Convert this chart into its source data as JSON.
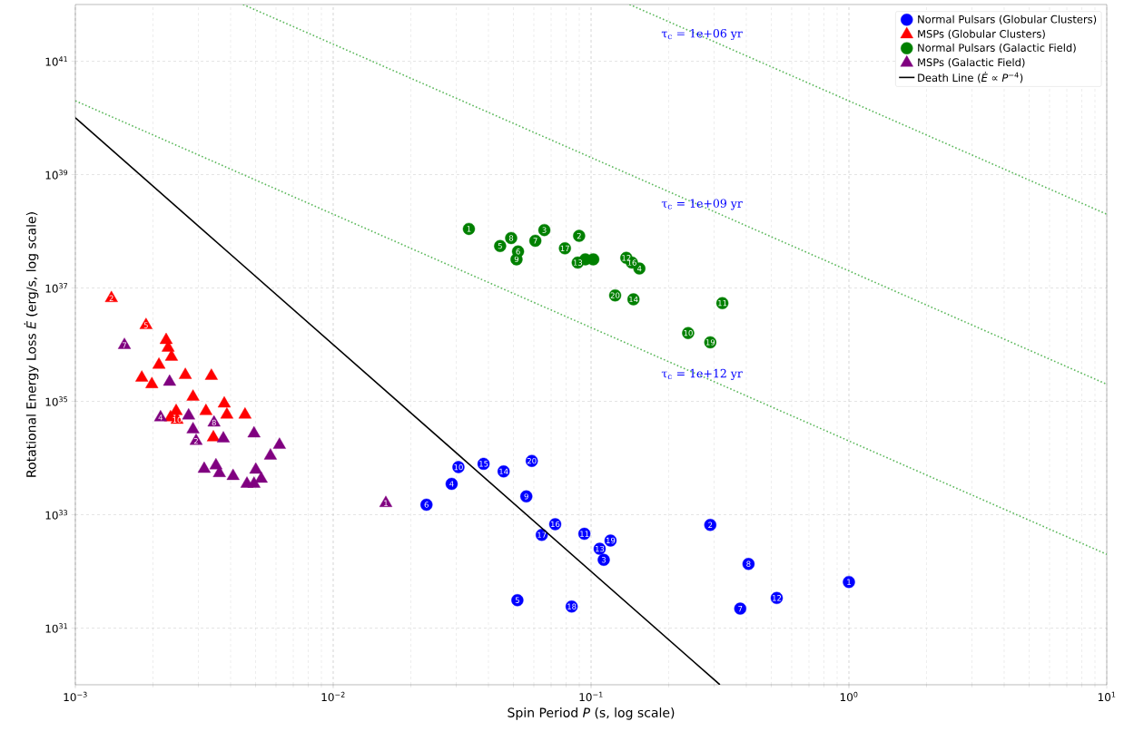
{
  "chart_data": {
    "type": "scatter",
    "xlabel": "Spin Period *P* (s, log scale)",
    "ylabel": "Rotational Energy Loss *Ė* (erg/s, log scale)",
    "log": "xy",
    "xlim": [
      0.001,
      10
    ],
    "ylim": [
      1e+30,
      1e+42
    ],
    "xticks": [
      {
        "value": 0.001,
        "label": "10$^{−3}$"
      },
      {
        "value": 0.01,
        "label": "10$^{−2}$"
      },
      {
        "value": 0.1,
        "label": "10$^{−1}$"
      },
      {
        "value": 1,
        "label": "10$^{0}$"
      },
      {
        "value": 10,
        "label": "10$^{1}$"
      }
    ],
    "yticks": [
      {
        "value": 1e+31,
        "label": "10$^{31}$"
      },
      {
        "value": 1e+33,
        "label": "10$^{33}$"
      },
      {
        "value": 1e+35,
        "label": "10$^{35}$"
      },
      {
        "value": 1e+37,
        "label": "10$^{37}$"
      },
      {
        "value": 1e+39,
        "label": "10$^{39}$"
      },
      {
        "value": 1e+41,
        "label": "10$^{41}$"
      }
    ],
    "grid": true,
    "legend": "top right",
    "annotations": [
      {
        "text": "1",
        "x": 1.0,
        "y": 6.5e+31
      },
      {
        "text": "2",
        "x": 0.29,
        "y": 6.6e+32
      },
      {
        "text": "3",
        "x": 0.112,
        "y": 1.6e+32
      },
      {
        "text": "4",
        "x": 0.0288,
        "y": 3.5e+33
      },
      {
        "text": "5",
        "x": 0.0518,
        "y": 3.1e+31
      },
      {
        "text": "6",
        "x": 0.023,
        "y": 1.5e+33
      },
      {
        "text": "7",
        "x": 0.379,
        "y": 2.2e+31
      },
      {
        "text": "8",
        "x": 0.408,
        "y": 1.35e+32
      },
      {
        "text": "9",
        "x": 0.0561,
        "y": 2.1e+33
      },
      {
        "text": "10",
        "x": 0.0306,
        "y": 6.9e+33
      },
      {
        "text": "11",
        "x": 0.0942,
        "y": 4.6e+32
      },
      {
        "text": "12",
        "x": 0.525,
        "y": 3.4e+31
      },
      {
        "text": "13",
        "x": 0.108,
        "y": 2.5e+32
      },
      {
        "text": "14",
        "x": 0.0458,
        "y": 5.8e+33
      },
      {
        "text": "15",
        "x": 0.0383,
        "y": 7.9e+33
      },
      {
        "text": "16",
        "x": 0.0726,
        "y": 6.8e+32
      },
      {
        "text": "17",
        "x": 0.0644,
        "y": 4.4e+32
      },
      {
        "text": "18",
        "x": 0.0841,
        "y": 2.4e+31
      },
      {
        "text": "19",
        "x": 0.119,
        "y": 3.5e+32
      },
      {
        "text": "20",
        "x": 0.0589,
        "y": 8.9e+33
      },
      {
        "text": "2",
        "x": 0.00138,
        "y": 6.6e+36
      },
      {
        "text": "5",
        "x": 0.00188,
        "y": 2.2e+36
      },
      {
        "text": "10",
        "x": 0.00248,
        "y": 4.7e+34
      },
      {
        "text": "1",
        "x": 0.0336,
        "y": 1.1e+38
      },
      {
        "text": "2",
        "x": 0.0899,
        "y": 8.3e+37
      },
      {
        "text": "3",
        "x": 0.0659,
        "y": 1.05e+38
      },
      {
        "text": "4",
        "x": 0.154,
        "y": 2.2e+37
      },
      {
        "text": "5",
        "x": 0.0444,
        "y": 5.5e+37
      },
      {
        "text": "6",
        "x": 0.0521,
        "y": 4.4e+37
      },
      {
        "text": "7",
        "x": 0.0608,
        "y": 6.8e+37
      },
      {
        "text": "8",
        "x": 0.049,
        "y": 7.6e+37
      },
      {
        "text": "9",
        "x": 0.0514,
        "y": 3.2e+37
      },
      {
        "text": "10",
        "x": 0.238,
        "y": 1.6e+36
      },
      {
        "text": "11",
        "x": 0.323,
        "y": 5.4e+36
      },
      {
        "text": "12",
        "x": 0.137,
        "y": 3.4e+37
      },
      {
        "text": "13",
        "x": 0.0888,
        "y": 2.8e+37
      },
      {
        "text": "14",
        "x": 0.146,
        "y": 6.3e+36
      },
      {
        "text": "16",
        "x": 0.144,
        "y": 2.8e+37
      },
      {
        "text": "17",
        "x": 0.0792,
        "y": 5e+37
      },
      {
        "text": "19",
        "x": 0.29,
        "y": 1.1e+36
      },
      {
        "text": "20",
        "x": 0.124,
        "y": 7.4e+36
      },
      {
        "text": "7",
        "x": 0.00155,
        "y": 9.8e+35
      },
      {
        "text": "4",
        "x": 0.00214,
        "y": 5.2e+34
      },
      {
        "text": "8",
        "x": 0.00345,
        "y": 4.2e+34
      },
      {
        "text": "2",
        "x": 0.00294,
        "y": 2e+34
      },
      {
        "text": "1",
        "x": 0.016,
        "y": 1.6e+33
      },
      "τ$_{c}$ = 1e+06 yr",
      "τ$_{c}$ = 1e+09 yr",
      "τ$_{c}$ = 1e+12 yr"
    ],
    "series": [
      {
        "name": "Normal Pulsars (Globular Clusters)",
        "color": "#0000ff",
        "marker": "circle",
        "x": [
          1.0,
          0.29,
          0.112,
          0.0288,
          0.0518,
          0.023,
          0.379,
          0.408,
          0.0561,
          0.0306,
          0.0942,
          0.525,
          0.108,
          0.0458,
          0.0383,
          0.0726,
          0.0644,
          0.0841,
          0.119,
          0.0589
        ],
        "values": [
          6.5e+31,
          6.6e+32,
          1.6e+32,
          3.5e+33,
          3.1e+31,
          1.5e+33,
          2.2e+31,
          1.35e+32,
          2.1e+33,
          6.9e+33,
          4.6e+32,
          3.4e+31,
          2.5e+32,
          5.8e+33,
          7.9e+33,
          6.8e+32,
          4.4e+32,
          2.4e+31,
          3.5e+32,
          8.9e+33
        ]
      },
      {
        "name": "MSPs (Globular Clusters)",
        "color": "#ff0000",
        "marker": "triangle",
        "x": [
          0.00138,
          0.00188,
          0.00225,
          0.00229,
          0.00236,
          0.00211,
          0.00181,
          0.00198,
          0.00267,
          0.00337,
          0.00286,
          0.00321,
          0.00378,
          0.00387,
          0.00455,
          0.00246,
          0.00248,
          0.00234,
          0.00343
        ],
        "values": [
          6.6e+36,
          2.2e+36,
          1.2e+36,
          8.8e+35,
          6.1e+35,
          4.4e+35,
          2.6e+35,
          2e+35,
          2.9e+35,
          2.8e+35,
          1.2e+35,
          6.7e+34,
          9.1e+34,
          5.8e+34,
          5.8e+34,
          6.7e+34,
          4.7e+34,
          5.2e+34,
          2.3e+34
        ]
      },
      {
        "name": "Normal Pulsars (Galactic Field)",
        "color": "#008000",
        "marker": "circle",
        "x": [
          0.0336,
          0.0899,
          0.0659,
          0.154,
          0.0444,
          0.0521,
          0.0608,
          0.049,
          0.0514,
          0.238,
          0.323,
          0.137,
          0.0888,
          0.146,
          0.095,
          0.144,
          0.0792,
          0.102,
          0.29,
          0.124
        ],
        "values": [
          1.1e+38,
          8.3e+37,
          1.05e+38,
          2.2e+37,
          5.5e+37,
          4.4e+37,
          6.8e+37,
          7.6e+37,
          3.2e+37,
          1.6e+36,
          5.4e+36,
          3.4e+37,
          2.8e+37,
          6.3e+36,
          3.2e+37,
          2.8e+37,
          5e+37,
          3.2e+37,
          1.1e+36,
          7.4e+36
        ]
      },
      {
        "name": "MSPs (Galactic Field)",
        "color": "#800080",
        "marker": "triangle",
        "x": [
          0.00155,
          0.00232,
          0.00214,
          0.00275,
          0.00345,
          0.00286,
          0.00294,
          0.00375,
          0.00493,
          0.00619,
          0.00571,
          0.00316,
          0.00351,
          0.00362,
          0.00409,
          0.00501,
          0.00463,
          0.00493,
          0.00526,
          0.016
        ],
        "values": [
          9.8e+35,
          2.2e+35,
          5.2e+34,
          5.6e+34,
          4.2e+34,
          3.2e+34,
          2e+34,
          2.2e+34,
          2.7e+34,
          1.7e+34,
          1.1e+34,
          6.4e+33,
          7.4e+33,
          5.4e+33,
          4.8e+33,
          6.2e+33,
          3.5e+33,
          3.5e+33,
          4.3e+33,
          1.6e+33
        ]
      },
      {
        "name": "Death Line (*Ė* ∝ *P*$^{−4}$)",
        "type": "line",
        "color": "#000000",
        "marker": "none",
        "line_style": "solid",
        "x": [
          0.001,
          0.316
        ],
        "values": [
          1e+40,
          1e+30
        ]
      },
      {
        "type": "line",
        "color": "#5cb85c",
        "marker": "none",
        "line_style": "dotted",
        "x": [
          0.141,
          10
        ],
        "values": [
          1e+42,
          2e+38
        ]
      },
      {
        "type": "line",
        "color": "#5cb85c",
        "marker": "none",
        "line_style": "dotted",
        "x": [
          0.00447,
          10
        ],
        "values": [
          1e+42,
          2e+35
        ]
      },
      {
        "type": "line",
        "color": "#5cb85c",
        "marker": "none",
        "line_style": "dotted",
        "x": [
          0.001,
          10
        ],
        "values": [
          2e+40,
          2e+32
        ]
      }
    ]
  }
}
